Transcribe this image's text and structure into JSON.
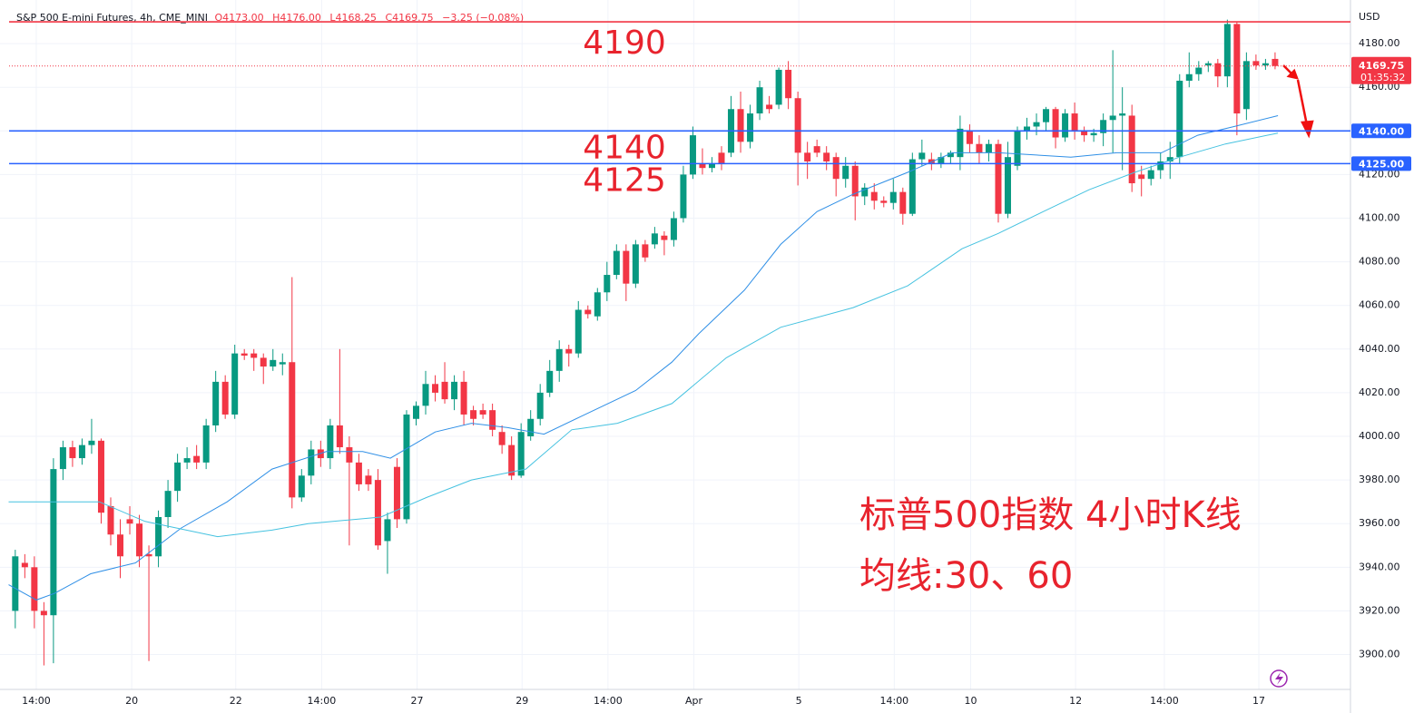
{
  "chart_data": {
    "type": "candlestick",
    "title": "S&P 500 E-mini Futures, 4h, CME_MINI",
    "ohlc_legend": [
      "O4173.00",
      "H4176.00",
      "L4168.25",
      "C4169.75",
      "−3.25 (−0.08%)"
    ],
    "currency": "USD",
    "annotations": [
      "标普500指数 4小时K线",
      "均线:30、60"
    ],
    "up_color": "#089981",
    "down_color": "#f23645",
    "xlim": [
      -1.6,
      139.9
    ],
    "ylim": [
      3884,
      4200
    ],
    "grid": true,
    "xticks": [
      {
        "value": 2.2,
        "label": "14:00"
      },
      {
        "value": 12.2,
        "label": "20"
      },
      {
        "value": 23.1,
        "label": "22"
      },
      {
        "value": 32.1,
        "label": "14:00"
      },
      {
        "value": 42.1,
        "label": "27"
      },
      {
        "value": 53.1,
        "label": "29"
      },
      {
        "value": 62.1,
        "label": "14:00"
      },
      {
        "value": 71.1,
        "label": "Apr"
      },
      {
        "value": 82.1,
        "label": "5"
      },
      {
        "value": 92.1,
        "label": "14:00"
      },
      {
        "value": 100.1,
        "label": "10"
      },
      {
        "value": 111.1,
        "label": "12"
      },
      {
        "value": 120.4,
        "label": "14:00"
      },
      {
        "value": 130.3,
        "label": "17"
      }
    ],
    "yticks": [
      {
        "value": 3900,
        "label": "3900.00"
      },
      {
        "value": 3920,
        "label": "3920.00"
      },
      {
        "value": 3940,
        "label": "3940.00"
      },
      {
        "value": 3960,
        "label": "3960.00"
      },
      {
        "value": 3980,
        "label": "3980.00"
      },
      {
        "value": 4000,
        "label": "4000.00"
      },
      {
        "value": 4020,
        "label": "4020.00"
      },
      {
        "value": 4040,
        "label": "4040.00"
      },
      {
        "value": 4060,
        "label": "4060.00"
      },
      {
        "value": 4080,
        "label": "4080.00"
      },
      {
        "value": 4100,
        "label": "4100.00"
      },
      {
        "value": 4120,
        "label": "4120.00"
      },
      {
        "value": 4140,
        "label": "4140.00"
      },
      {
        "value": 4160,
        "label": "4160.00"
      },
      {
        "value": 4180,
        "label": "4180.00"
      }
    ],
    "x": [
      0,
      1,
      2,
      3,
      4,
      5,
      6,
      7,
      8,
      9,
      10,
      11,
      12,
      13,
      14,
      15,
      16,
      17,
      18,
      19,
      20,
      21,
      22,
      23,
      24,
      25,
      26,
      27,
      28,
      29,
      30,
      31,
      32,
      33,
      34,
      35,
      36,
      37,
      38,
      39,
      40,
      41,
      42,
      43,
      44,
      45,
      46,
      47,
      48,
      49,
      50,
      51,
      52,
      53,
      54,
      55,
      56,
      57,
      58,
      59,
      60,
      61,
      62,
      63,
      64,
      65,
      66,
      67,
      68,
      69,
      70,
      71,
      72,
      73,
      74,
      75,
      76,
      77,
      78,
      79,
      80,
      81,
      82,
      83,
      84,
      85,
      86,
      87,
      88,
      89,
      90,
      91,
      92,
      93,
      94,
      95,
      96,
      97,
      98,
      99,
      100,
      101,
      102,
      103,
      104,
      105,
      106,
      107,
      108,
      109,
      110,
      111,
      112,
      113,
      114,
      115,
      116,
      117,
      118,
      119,
      120,
      121,
      122,
      123,
      124,
      125,
      126,
      127,
      128,
      129,
      130,
      131,
      132
    ],
    "open": [
      3920,
      3942,
      3940,
      3920,
      3918,
      3985,
      3995,
      3990,
      3996,
      3998,
      3968,
      3955,
      3962,
      3960,
      3946,
      3945,
      3963,
      3975,
      3988,
      3991,
      3988,
      4005,
      4025,
      4010,
      4038,
      4038,
      4036,
      4032,
      4033,
      4034,
      3972,
      3982,
      3994,
      3990,
      4005,
      3995,
      3988,
      3982,
      3980,
      3952,
      3986,
      3962,
      4008,
      4014,
      4024,
      4025,
      4017,
      4025,
      4012,
      4012,
      4012,
      4002,
      3996,
      3982,
      4000,
      4008,
      4020,
      4030,
      4040,
      4038,
      4058,
      4055,
      4066,
      4074,
      4085,
      4070,
      4088,
      4088,
      4092,
      4090,
      4100,
      4120,
      4125,
      4123,
      4130,
      4130,
      4150,
      4135,
      4148,
      4152,
      4152,
      4168,
      4155,
      4130,
      4133,
      4130,
      4128,
      4118,
      4124,
      4110,
      4112,
      4108,
      4107,
      4112,
      4102,
      4127,
      4127,
      4125,
      4128,
      4128,
      4140,
      4134,
      4130,
      4134,
      4102,
      4124,
      4140,
      4142,
      4144,
      4150,
      4137,
      4148,
      4140,
      4138,
      4139,
      4145,
      4147,
      4147,
      4120,
      4118,
      4122,
      4126,
      4128,
      4163,
      4166,
      4170,
      4171,
      4165,
      4189,
      4150,
      4172,
      4170,
      4173
    ],
    "high": [
      3948,
      3946,
      3945,
      3924,
      3990,
      3998,
      3998,
      3999,
      4008,
      3999,
      3972,
      3962,
      3968,
      3964,
      3950,
      3966,
      3980,
      3992,
      3995,
      3996,
      4008,
      4030,
      4028,
      4042,
      4040,
      4040,
      4038,
      4040,
      4038,
      4073,
      3985,
      3998,
      3998,
      4008,
      4040,
      4000,
      3992,
      3985,
      3985,
      3965,
      3990,
      4012,
      4016,
      4030,
      4028,
      4034,
      4028,
      4030,
      4014,
      4015,
      4015,
      4005,
      4000,
      4006,
      4012,
      4024,
      4035,
      4044,
      4042,
      4062,
      4060,
      4068,
      4080,
      4088,
      4088,
      4090,
      4090,
      4096,
      4094,
      4103,
      4124,
      4142,
      4132,
      4128,
      4133,
      4156,
      4158,
      4152,
      4163,
      4156,
      4169,
      4172,
      4158,
      4135,
      4136,
      4133,
      4130,
      4128,
      4126,
      4116,
      4116,
      4110,
      4118,
      4114,
      4130,
      4136,
      4130,
      4130,
      4131,
      4147,
      4143,
      4138,
      4136,
      4136,
      4135,
      4142,
      4146,
      4148,
      4151,
      4151,
      4150,
      4153,
      4142,
      4141,
      4148,
      4177,
      4160,
      4152,
      4124,
      4124,
      4130,
      4135,
      4166,
      4176,
      4172,
      4172,
      4173,
      4191,
      4190,
      4176,
      4175,
      4173,
      4176
    ],
    "low": [
      3912,
      3935,
      3912,
      3895,
      3896,
      3980,
      3986,
      3987,
      3992,
      3960,
      3950,
      3935,
      3955,
      3940,
      3897,
      3940,
      3958,
      3970,
      3985,
      3985,
      3985,
      4002,
      4008,
      4008,
      4035,
      4030,
      4024,
      4030,
      4028,
      3967,
      3970,
      3978,
      3986,
      3985,
      3992,
      3950,
      3975,
      3975,
      3948,
      3937,
      3958,
      3960,
      4005,
      4010,
      4016,
      4015,
      4012,
      4005,
      4005,
      4008,
      4000,
      3992,
      3980,
      3981,
      3998,
      4005,
      4018,
      4025,
      4032,
      4036,
      4054,
      4053,
      4062,
      4072,
      4062,
      4068,
      4080,
      4086,
      4083,
      4087,
      4098,
      4118,
      4120,
      4121,
      4122,
      4128,
      4130,
      4132,
      4145,
      4148,
      4150,
      4150,
      4115,
      4118,
      4128,
      4122,
      4110,
      4114,
      4099,
      4106,
      4104,
      4105,
      4104,
      4097,
      4101,
      4124,
      4122,
      4123,
      4125,
      4122,
      4130,
      4125,
      4126,
      4098,
      4100,
      4122,
      4136,
      4138,
      4140,
      4132,
      4135,
      4136,
      4135,
      4135,
      4133,
      4130,
      4122,
      4112,
      4110,
      4115,
      4118,
      4118,
      4125,
      4160,
      4163,
      4167,
      4160,
      4160,
      4138,
      4145,
      4168,
      4168,
      4168.25
    ],
    "close": [
      3945,
      3940,
      3920,
      3918,
      3985,
      3995,
      3990,
      3996,
      3998,
      3965,
      3955,
      3945,
      3960,
      3945,
      3945,
      3963,
      3975,
      3988,
      3990,
      3988,
      4005,
      4025,
      4010,
      4038,
      4037,
      4036,
      4032,
      4035,
      4034,
      3972,
      3982,
      3994,
      3990,
      4005,
      3995,
      3988,
      3978,
      3978,
      3950,
      3962,
      3962,
      4010,
      4014,
      4024,
      4020,
      4017,
      4025,
      4010,
      4008,
      4010,
      4003,
      3996,
      3982,
      4002,
      4008,
      4020,
      4030,
      4040,
      4038,
      4058,
      4056,
      4066,
      4074,
      4085,
      4070,
      4088,
      4082,
      4093,
      4090,
      4100,
      4120,
      4138,
      4123,
      4125,
      4125,
      4150,
      4135,
      4148,
      4160,
      4150,
      4168,
      4155,
      4130,
      4126,
      4130,
      4126,
      4118,
      4124,
      4110,
      4114,
      4108,
      4107,
      4112,
      4102,
      4127,
      4130,
      4125,
      4128,
      4130,
      4141,
      4134,
      4130,
      4134,
      4102,
      4128,
      4140,
      4142,
      4144,
      4150,
      4137,
      4148,
      4140,
      4138,
      4139,
      4145,
      4147,
      4148,
      4116,
      4118,
      4122,
      4126,
      4128,
      4163,
      4166,
      4169,
      4171,
      4165,
      4189,
      4148,
      4172,
      4170,
      4171,
      4169.75
    ],
    "ma_lines": [
      {
        "color": "#2f8fe6",
        "x": [
          -0.7,
          2.2,
          4.1,
          7.9,
          12.6,
          17.4,
          22.2,
          26.9,
          32.6,
          36.4,
          39.3,
          44,
          47.8,
          51.6,
          55.4,
          59.2,
          65,
          68.8,
          71.6,
          76.4,
          80.2,
          84,
          87.8,
          93.5,
          98.2,
          103,
          110.6,
          115.4,
          120.1,
          123.9,
          127.7,
          132.3
        ],
        "values": [
          3932,
          3925,
          3928,
          3937,
          3942,
          3958,
          3970,
          3985,
          3993,
          3993,
          3990,
          4002,
          4006,
          4004,
          4001,
          4009,
          4021,
          4034,
          4047,
          4067,
          4088,
          4103,
          4111,
          4121,
          4130,
          4130,
          4128,
          4130,
          4130,
          4138,
          4142,
          4147
        ]
      },
      {
        "color": "#45c2e0",
        "x": [
          -0.7,
          8.8,
          13.6,
          21.2,
          26.9,
          30.7,
          38.3,
          43.1,
          47.8,
          53.5,
          58.3,
          63.1,
          68.8,
          74.5,
          80.2,
          87.8,
          93.5,
          99.2,
          103,
          107.7,
          112.5,
          117.3,
          122,
          126.8,
          132.3
        ],
        "values": [
          3970,
          3970,
          3961,
          3954,
          3957,
          3960,
          3963,
          3972,
          3980,
          3985,
          4003,
          4006,
          4015,
          4036,
          4050,
          4059,
          4069,
          4086,
          4093,
          4103,
          4113,
          4121,
          4128,
          4134,
          4139
        ]
      }
    ],
    "levels": [
      {
        "value": 4190,
        "label": "4190",
        "color": "#f23645"
      },
      {
        "value": 4140,
        "label": "4140",
        "axis_label": "4140.00",
        "color": "#2962ff"
      },
      {
        "value": 4125,
        "label": "4125",
        "axis_label": "4125.00",
        "color": "#2962ff"
      }
    ],
    "last": {
      "value": 4169.75,
      "label": "4169.75",
      "countdown": "01:35:32",
      "color": "#f23645"
    }
  }
}
